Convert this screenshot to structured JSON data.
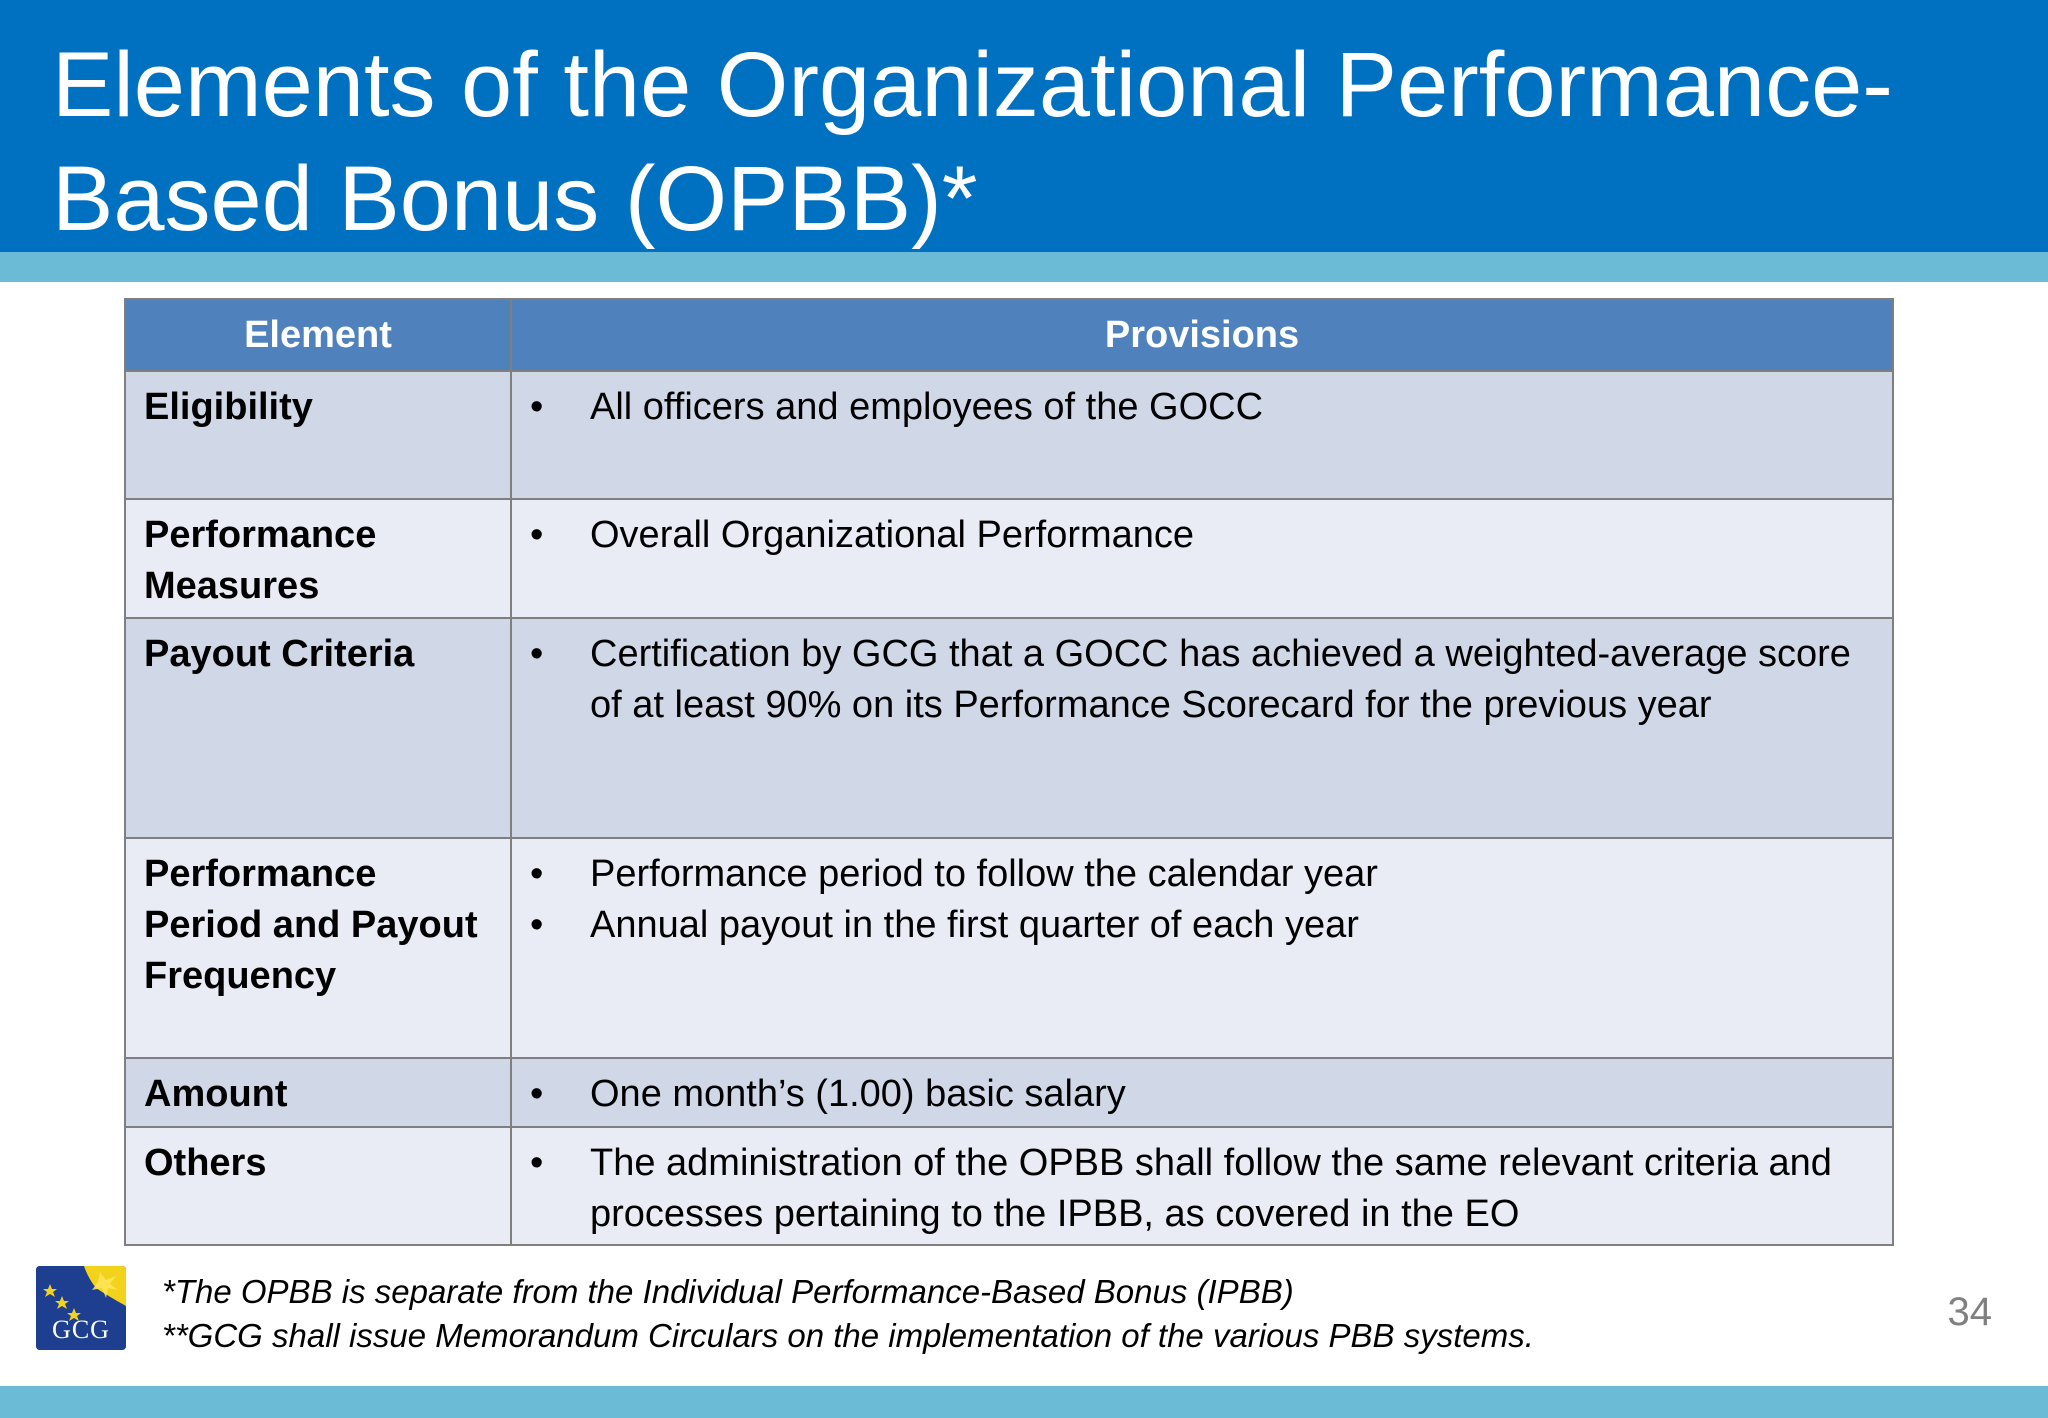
{
  "slide": {
    "title": "Elements of the Organizational Performance-Based Bonus (OPBB)*",
    "page_number": "34"
  },
  "table": {
    "headers": [
      "Element",
      "Provisions"
    ],
    "rows": [
      {
        "element": "Eligibility",
        "provisions": [
          "All officers and employees of the GOCC"
        ]
      },
      {
        "element": "Performance Measures",
        "provisions": [
          "Overall Organizational Performance"
        ]
      },
      {
        "element": "Payout Criteria",
        "provisions": [
          "Certification by GCG that a GOCC has achieved a weighted-average score of at least 90% on its Performance Scorecard for the previous year"
        ]
      },
      {
        "element": "Performance Period and Payout Frequency",
        "provisions": [
          "Performance period to follow the calendar year",
          "Annual payout in the first quarter of each year"
        ]
      },
      {
        "element": "Amount",
        "provisions": [
          "One month’s (1.00) basic salary"
        ]
      },
      {
        "element": "Others",
        "provisions": [
          "The administration of the OPBB shall follow the same relevant criteria and processes pertaining to the IPBB, as covered in the EO"
        ]
      }
    ],
    "bullet": "•"
  },
  "footnotes": [
    "*The OPBB is separate from the Individual Performance-Based Bonus (IPBB)",
    "**GCG shall issue Memorandum Circulars on the implementation of the various PBB systems."
  ],
  "logo": {
    "text": "GCG",
    "icon": "gcg-seal-icon"
  },
  "colors": {
    "title_bar": "#0070c0",
    "stripe": "#6bbbd6",
    "table_header": "#4f81bd",
    "row_odd": "#d0d8e8",
    "row_even": "#e9ebf5"
  }
}
